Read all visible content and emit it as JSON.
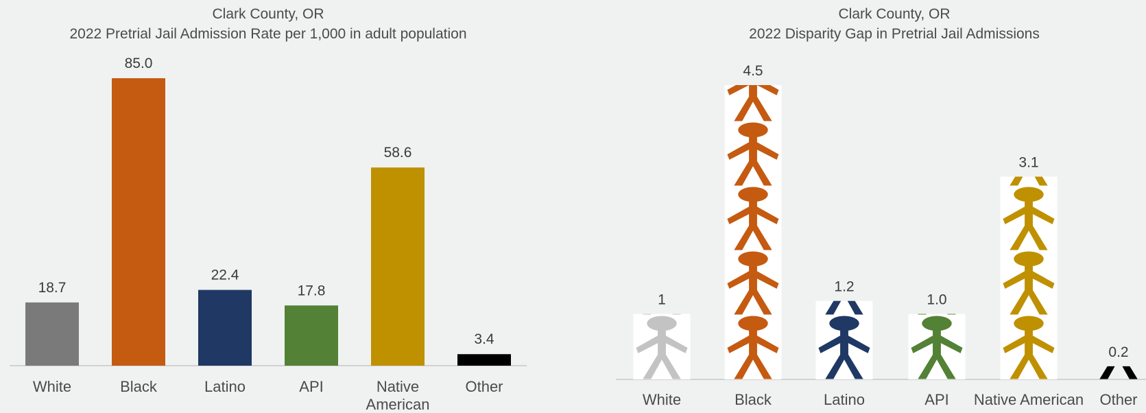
{
  "colors": {
    "White": "#7a7a7a",
    "White_figure": "#c3c3c3",
    "Black": "#c55a11",
    "Latino": "#1f3864",
    "API": "#538135",
    "Native American": "#bf9000",
    "Other": "#000000",
    "figure_background": "#ffffff",
    "axis": "#c8c8c8"
  },
  "chart_data": [
    {
      "type": "bar",
      "title": "Clark County, OR",
      "subtitle": "2022 Pretrial Jail Admission Rate per 1,000 in adult population",
      "categories": [
        "White",
        "Black",
        "Latino",
        "API",
        "Native American",
        "Other"
      ],
      "category_lines": [
        [
          "White"
        ],
        [
          "Black"
        ],
        [
          "Latino"
        ],
        [
          "API"
        ],
        [
          "Native",
          "American"
        ],
        [
          "Other"
        ]
      ],
      "values": [
        18.7,
        85.0,
        22.4,
        17.8,
        58.6,
        3.4
      ],
      "data_labels": [
        "18.7",
        "85.0",
        "22.4",
        "17.8",
        "58.6",
        "3.4"
      ],
      "ylim": [
        0,
        85
      ],
      "grid": false,
      "legend": "none"
    },
    {
      "type": "bar",
      "style": "pictograph",
      "icon": "person-icon",
      "title": "Clark County, OR",
      "subtitle": "2022 Disparity Gap in Pretrial Jail Admissions",
      "categories": [
        "White",
        "Black",
        "Latino",
        "API",
        "Native American",
        "Other"
      ],
      "values": [
        1.0,
        4.5,
        1.2,
        1.0,
        3.1,
        0.2
      ],
      "data_labels": [
        "1",
        "4.5",
        "1.2",
        "1.0",
        "3.1",
        "0.2"
      ],
      "ylim": [
        0,
        4.5
      ],
      "grid": false,
      "legend": "none"
    }
  ]
}
